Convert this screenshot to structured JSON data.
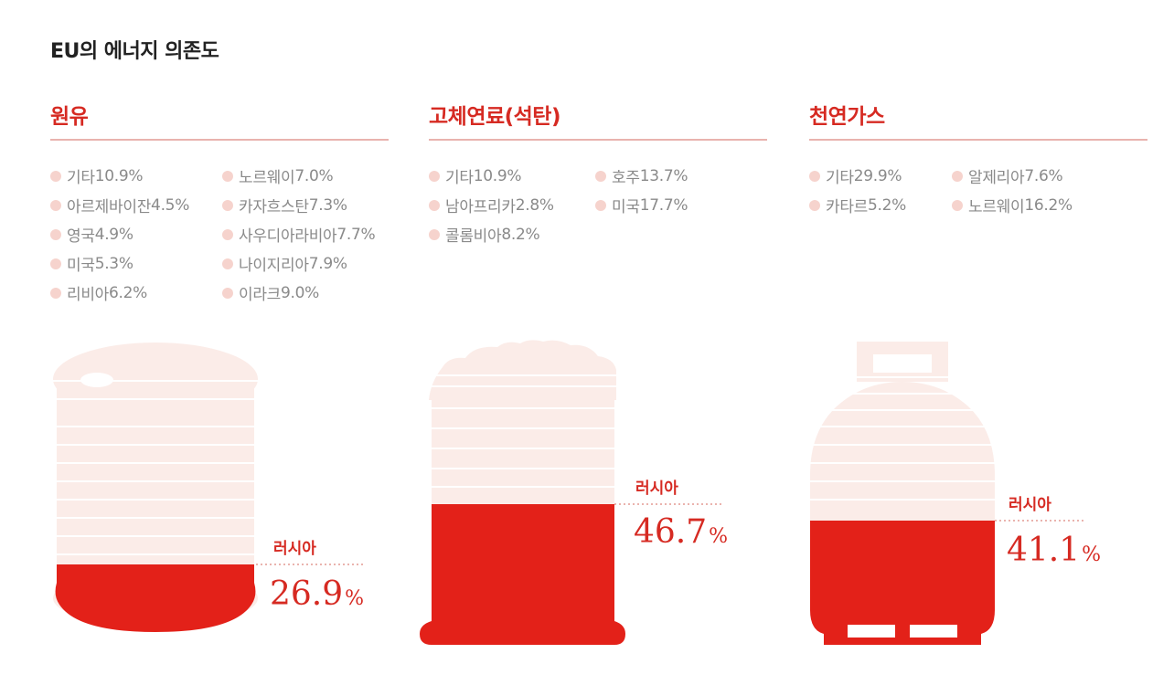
{
  "title": "EU의 에너지 의존도",
  "colors": {
    "accent": "#e32119",
    "light": "#fbece8",
    "dot": "#f6d3cd"
  },
  "chart_data": [
    {
      "type": "bar",
      "title": "원유",
      "icon": "oil-barrel-icon",
      "highlight": {
        "label": "러시아",
        "value": 26.9,
        "unit": "%"
      },
      "legend": [
        {
          "label": "기타",
          "value": 10.9
        },
        {
          "label": "아르제바이잔",
          "value": 4.5
        },
        {
          "label": "영국",
          "value": 4.9
        },
        {
          "label": "미국",
          "value": 5.3
        },
        {
          "label": "리비아",
          "value": 6.2
        },
        {
          "label": "노르웨이",
          "value": 7.0
        },
        {
          "label": "카자흐스탄",
          "value": 7.3
        },
        {
          "label": "사우디아라비아",
          "value": 7.7
        },
        {
          "label": "나이지리아",
          "value": 7.9
        },
        {
          "label": "이라크",
          "value": 9.0
        }
      ]
    },
    {
      "type": "bar",
      "title": "고체연료(석탄)",
      "icon": "coal-container-icon",
      "highlight": {
        "label": "러시아",
        "value": 46.7,
        "unit": "%"
      },
      "legend": [
        {
          "label": "기타",
          "value": 10.9
        },
        {
          "label": "남아프리카",
          "value": 2.8
        },
        {
          "label": "콜롬비아",
          "value": 8.2
        },
        {
          "label": "호주",
          "value": 13.7
        },
        {
          "label": "미국",
          "value": 17.7
        }
      ]
    },
    {
      "type": "bar",
      "title": "천연가스",
      "icon": "gas-cylinder-icon",
      "highlight": {
        "label": "러시아",
        "value": 41.1,
        "unit": "%"
      },
      "legend": [
        {
          "label": "기타",
          "value": 29.9
        },
        {
          "label": "카타르",
          "value": 5.2
        },
        {
          "label": "알제리아",
          "value": 7.6
        },
        {
          "label": "노르웨이",
          "value": 16.2
        }
      ]
    }
  ]
}
